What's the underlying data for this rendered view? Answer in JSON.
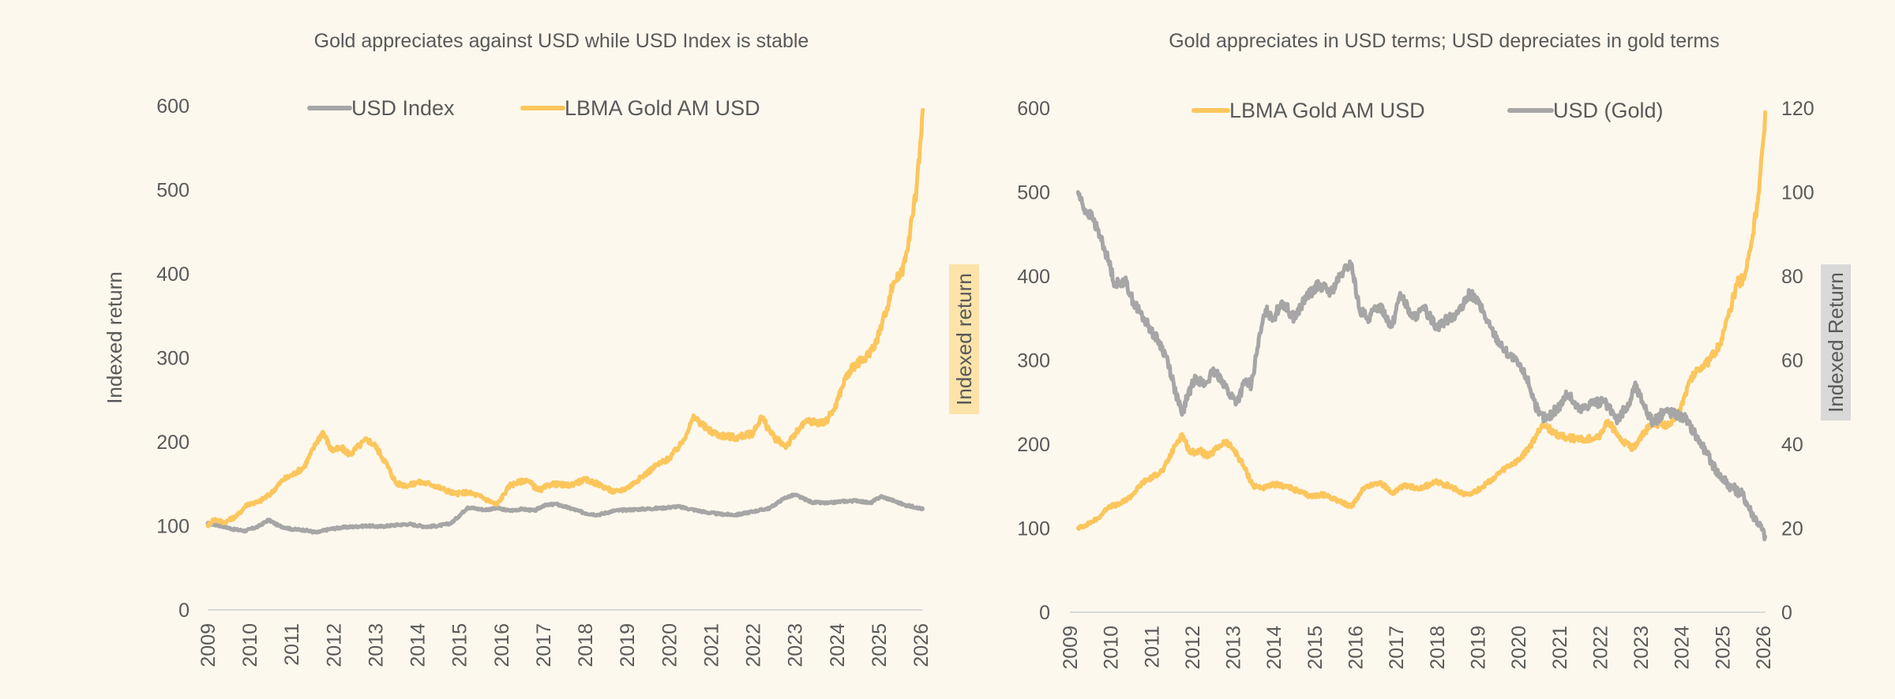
{
  "chart_data": [
    {
      "type": "line",
      "title": "Gold appreciates against USD while USD Index is stable",
      "xlabel": "",
      "ylabel": "Indexed return",
      "ylabel_side_box": "Indexed return",
      "ylabel_side_box_color": "#fbe3a9",
      "ylim": [
        0,
        600
      ],
      "yticks": [
        0,
        100,
        200,
        300,
        400,
        500,
        600
      ],
      "xlim": [
        2009,
        2026.05
      ],
      "xticks": [
        "2009",
        "2010",
        "2011",
        "2012",
        "2013",
        "2014",
        "2015",
        "2016",
        "2017",
        "2018",
        "2019",
        "2020",
        "2021",
        "2022",
        "2023",
        "2024",
        "2025",
        "2026"
      ],
      "legend_position": "top-center",
      "grid": false,
      "series": [
        {
          "name": "USD Index",
          "color": "#a6a6a6",
          "axis": "left",
          "x": [
            2009.0,
            2009.2,
            2009.4,
            2009.6,
            2009.9,
            2010.2,
            2010.45,
            2010.7,
            2011.0,
            2011.3,
            2011.6,
            2011.9,
            2012.2,
            2012.5,
            2012.8,
            2013.1,
            2013.5,
            2013.8,
            2014.2,
            2014.5,
            2014.8,
            2015.0,
            2015.2,
            2015.6,
            2015.9,
            2016.2,
            2016.5,
            2016.8,
            2017.0,
            2017.3,
            2017.7,
            2018.0,
            2018.3,
            2018.7,
            2019.0,
            2019.4,
            2019.8,
            2020.2,
            2020.5,
            2020.9,
            2021.2,
            2021.6,
            2022.0,
            2022.4,
            2022.75,
            2023.0,
            2023.4,
            2023.8,
            2024.1,
            2024.5,
            2024.8,
            2025.05,
            2025.3,
            2025.6,
            2025.9,
            2026.05
          ],
          "values": [
            103,
            101,
            99,
            96,
            94,
            99,
            107,
            100,
            96,
            95,
            92,
            96,
            98,
            99,
            100,
            99,
            101,
            102,
            99,
            100,
            103,
            112,
            122,
            119,
            121,
            118,
            120,
            118,
            124,
            126,
            120,
            115,
            113,
            118,
            119,
            120,
            121,
            123,
            120,
            116,
            114,
            113,
            117,
            121,
            133,
            137,
            128,
            127,
            129,
            130,
            127,
            135,
            131,
            125,
            122,
            120
          ]
        },
        {
          "name": "LBMA Gold AM USD",
          "color": "#fcc65d",
          "axis": "left",
          "x": [
            2009.0,
            2009.15,
            2009.4,
            2009.7,
            2009.95,
            2010.2,
            2010.5,
            2010.8,
            2011.0,
            2011.3,
            2011.6,
            2011.75,
            2011.95,
            2012.2,
            2012.4,
            2012.6,
            2012.8,
            2013.0,
            2013.25,
            2013.5,
            2013.8,
            2014.0,
            2014.3,
            2014.6,
            2014.9,
            2015.2,
            2015.5,
            2015.9,
            2016.2,
            2016.6,
            2016.9,
            2017.2,
            2017.6,
            2018.0,
            2018.3,
            2018.7,
            2019.0,
            2019.4,
            2019.7,
            2020.0,
            2020.3,
            2020.6,
            2020.9,
            2021.2,
            2021.6,
            2022.0,
            2022.2,
            2022.5,
            2022.8,
            2023.1,
            2023.3,
            2023.7,
            2023.95,
            2024.2,
            2024.4,
            2024.7,
            2024.95,
            2025.2,
            2025.35,
            2025.55,
            2025.75,
            2025.9,
            2026.0,
            2026.05
          ],
          "values": [
            100,
            108,
            104,
            112,
            126,
            128,
            138,
            155,
            160,
            170,
            200,
            212,
            190,
            192,
            185,
            195,
            203,
            195,
            175,
            150,
            148,
            152,
            150,
            144,
            138,
            140,
            135,
            125,
            148,
            155,
            142,
            150,
            148,
            155,
            150,
            140,
            145,
            160,
            172,
            180,
            198,
            230,
            215,
            208,
            205,
            210,
            230,
            205,
            195,
            215,
            225,
            222,
            240,
            275,
            290,
            300,
            320,
            360,
            390,
            400,
            450,
            500,
            560,
            595
          ]
        },
        {
          "name": "_unused",
          "values": []
        }
      ]
    },
    {
      "type": "line",
      "title": "Gold appreciates in USD terms; USD depreciates in gold terms",
      "xlabel": "",
      "ylabel_left": "",
      "ylabel_right": "Indexed Return",
      "ylabel_right_box_color": "#d9d9d9",
      "ylim_left": [
        0,
        600
      ],
      "yticks_left": [
        0,
        100,
        200,
        300,
        400,
        500,
        600
      ],
      "ylim_right": [
        0,
        120
      ],
      "yticks_right": [
        0,
        20,
        40,
        60,
        80,
        100,
        120
      ],
      "xlim": [
        2009,
        2026.05
      ],
      "xticks": [
        "2009",
        "2010",
        "2011",
        "2012",
        "2013",
        "2014",
        "2015",
        "2016",
        "2017",
        "2018",
        "2019",
        "2020",
        "2021",
        "2022",
        "2023",
        "2024",
        "2025",
        "2026"
      ],
      "legend_position": "top-center",
      "grid": false,
      "series": [
        {
          "name": "LBMA Gold AM USD",
          "color": "#fcc65d",
          "axis": "left",
          "x": [
            2009.2,
            2009.4,
            2009.7,
            2009.95,
            2010.2,
            2010.5,
            2010.8,
            2011.0,
            2011.3,
            2011.6,
            2011.75,
            2011.95,
            2012.2,
            2012.4,
            2012.6,
            2012.8,
            2013.0,
            2013.25,
            2013.5,
            2013.8,
            2014.0,
            2014.3,
            2014.6,
            2014.9,
            2015.2,
            2015.5,
            2015.9,
            2016.2,
            2016.6,
            2016.9,
            2017.2,
            2017.6,
            2018.0,
            2018.3,
            2018.7,
            2019.0,
            2019.4,
            2019.7,
            2020.0,
            2020.3,
            2020.6,
            2020.9,
            2021.2,
            2021.6,
            2022.0,
            2022.2,
            2022.5,
            2022.8,
            2023.1,
            2023.3,
            2023.7,
            2023.95,
            2024.2,
            2024.4,
            2024.7,
            2024.95,
            2025.2,
            2025.35,
            2025.55,
            2025.75,
            2025.9,
            2026.0,
            2026.05
          ],
          "values": [
            100,
            104,
            112,
            126,
            128,
            138,
            155,
            160,
            170,
            200,
            212,
            190,
            192,
            185,
            195,
            203,
            195,
            175,
            150,
            148,
            152,
            150,
            144,
            138,
            140,
            135,
            125,
            148,
            155,
            142,
            150,
            148,
            155,
            150,
            140,
            145,
            160,
            172,
            180,
            198,
            225,
            212,
            208,
            205,
            210,
            228,
            205,
            195,
            215,
            225,
            222,
            240,
            275,
            290,
            300,
            320,
            360,
            390,
            400,
            450,
            500,
            560,
            595
          ]
        },
        {
          "name": "USD (Gold)",
          "color": "#a6a6a6",
          "axis": "right",
          "x": [
            2009.2,
            2009.35,
            2009.55,
            2009.8,
            2010.0,
            2010.1,
            2010.35,
            2010.55,
            2010.8,
            2011.0,
            2011.2,
            2011.4,
            2011.6,
            2011.75,
            2011.9,
            2012.1,
            2012.3,
            2012.5,
            2012.7,
            2012.9,
            2013.1,
            2013.3,
            2013.45,
            2013.6,
            2013.8,
            2014.0,
            2014.2,
            2014.5,
            2014.8,
            2015.1,
            2015.4,
            2015.7,
            2015.9,
            2016.1,
            2016.3,
            2016.6,
            2016.9,
            2017.1,
            2017.4,
            2017.7,
            2018.0,
            2018.3,
            2018.6,
            2018.8,
            2019.0,
            2019.3,
            2019.6,
            2019.9,
            2020.2,
            2020.5,
            2020.7,
            2021.0,
            2021.2,
            2021.5,
            2021.8,
            2022.1,
            2022.4,
            2022.7,
            2022.85,
            2023.05,
            2023.3,
            2023.6,
            2023.9,
            2024.1,
            2024.3,
            2024.6,
            2024.9,
            2025.2,
            2025.5,
            2025.7,
            2025.9,
            2026.05
          ],
          "values": [
            100,
            96,
            94,
            88,
            82,
            78,
            79,
            74,
            70,
            67,
            64,
            60,
            52,
            47,
            52,
            56,
            54,
            57,
            56,
            52,
            50,
            55,
            54,
            63,
            72,
            70,
            74,
            70,
            75,
            78,
            76,
            81,
            83,
            72,
            70,
            73,
            68,
            76,
            70,
            72,
            68,
            70,
            72,
            76,
            74,
            68,
            63,
            60,
            56,
            47,
            46,
            49,
            52,
            48,
            50,
            50,
            46,
            49,
            54,
            50,
            45,
            48,
            47,
            46,
            43,
            38,
            33,
            30,
            28,
            24,
            21,
            18
          ]
        }
      ]
    }
  ]
}
